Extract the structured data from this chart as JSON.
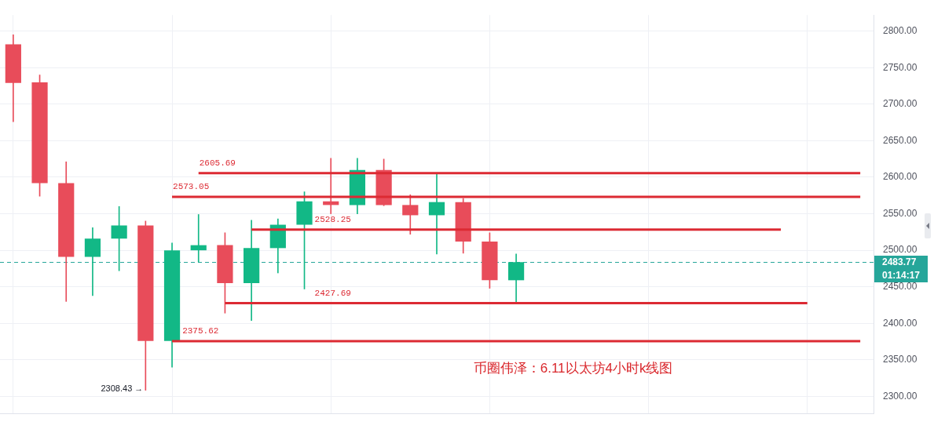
{
  "chart_data": {
    "type": "candlestick",
    "categories": [
      null,
      null,
      null,
      null,
      null,
      null,
      null,
      null,
      null,
      null,
      null,
      null,
      null,
      null,
      null,
      null,
      null,
      null,
      null,
      null,
      null,
      null,
      null,
      null,
      null,
      null,
      null,
      null,
      null,
      null,
      null,
      null,
      null
    ],
    "ohlc": [
      [
        2782,
        2795,
        2676,
        2729
      ],
      [
        2730,
        2740,
        2574,
        2592
      ],
      [
        2592,
        2621,
        2430,
        2491
      ],
      [
        2491,
        2531,
        2438,
        2516
      ],
      [
        2516,
        2560,
        2472,
        2534
      ],
      [
        2534,
        2540,
        2308.43,
        2376
      ],
      [
        2376,
        2510,
        2340,
        2500
      ],
      [
        2500,
        2549,
        2484,
        2507
      ],
      [
        2507,
        2524,
        2414,
        2455
      ],
      [
        2455,
        2541,
        2404,
        2503
      ],
      [
        2503,
        2543,
        2469,
        2535
      ],
      [
        2535,
        2580,
        2447,
        2567
      ],
      [
        2567,
        2626,
        2550,
        2562
      ],
      [
        2562,
        2626,
        2550,
        2610
      ],
      [
        2610,
        2625,
        2561,
        2562
      ],
      [
        2562,
        2576,
        2522,
        2548
      ],
      [
        2548,
        2604,
        2495,
        2566
      ],
      [
        2566,
        2571,
        2496,
        2512
      ],
      [
        2512,
        2524,
        2448,
        2459
      ],
      [
        2459,
        2495,
        2429,
        2483.77
      ],
      null,
      null,
      null,
      null,
      null,
      null,
      null,
      null,
      null,
      null,
      null,
      null,
      null
    ],
    "colors": [
      "#e84c5a",
      "#e84c5a",
      "#e84c5a",
      "#12b886",
      "#12b886",
      "#e84c5a",
      "#12b886",
      "#12b886",
      "#e84c5a",
      "#12b886",
      "#12b886",
      "#12b886",
      "#e84c5a",
      "#12b886",
      "#e84c5a",
      "#e84c5a",
      "#12b886",
      "#e84c5a",
      "#e84c5a",
      "#12b886",
      null,
      null,
      null,
      null,
      null,
      null,
      null,
      null,
      null,
      null,
      null,
      null,
      null
    ],
    "series": [
      {
        "type": "line",
        "name": "2605.69",
        "color": "#dc2a33",
        "values": [
          null,
          null,
          null,
          null,
          null,
          null,
          null,
          2605.69,
          2605.69,
          2605.69,
          2605.69,
          2605.69,
          2605.69,
          2605.69,
          2605.69,
          2605.69,
          2605.69,
          2605.69,
          2605.69,
          2605.69,
          2605.69,
          2605.69,
          2605.69,
          2605.69,
          2605.69,
          2605.69,
          2605.69,
          2605.69,
          2605.69,
          2605.69,
          2605.69,
          2605.69,
          2605.69
        ]
      },
      {
        "type": "line",
        "name": "2573.05",
        "color": "#dc2a33",
        "values": [
          null,
          null,
          null,
          null,
          null,
          null,
          2573.05,
          2573.05,
          2573.05,
          2573.05,
          2573.05,
          2573.05,
          2573.05,
          2573.05,
          2573.05,
          2573.05,
          2573.05,
          2573.05,
          2573.05,
          2573.05,
          2573.05,
          2573.05,
          2573.05,
          2573.05,
          2573.05,
          2573.05,
          2573.05,
          2573.05,
          2573.05,
          2573.05,
          2573.05,
          2573.05,
          2573.05
        ]
      },
      {
        "type": "line",
        "name": "2528.25",
        "color": "#dc2a33",
        "values": [
          null,
          null,
          null,
          null,
          null,
          null,
          null,
          null,
          null,
          2528.25,
          2528.25,
          2528.25,
          2528.25,
          2528.25,
          2528.25,
          2528.25,
          2528.25,
          2528.25,
          2528.25,
          2528.25,
          2528.25,
          2528.25,
          2528.25,
          2528.25,
          2528.25,
          2528.25,
          2528.25,
          2528.25,
          2528.25,
          2528.25,
          null,
          null,
          null
        ]
      },
      {
        "type": "line",
        "name": "2427.69",
        "color": "#dc2a33",
        "values": [
          null,
          null,
          null,
          null,
          null,
          null,
          null,
          null,
          2427.69,
          2427.69,
          2427.69,
          2427.69,
          2427.69,
          2427.69,
          2427.69,
          2427.69,
          2427.69,
          2427.69,
          2427.69,
          2427.69,
          2427.69,
          2427.69,
          2427.69,
          2427.69,
          2427.69,
          2427.69,
          2427.69,
          2427.69,
          2427.69,
          2427.69,
          2427.69,
          null,
          null
        ]
      },
      {
        "type": "line",
        "name": "2375.62",
        "color": "#dc2a33",
        "values": [
          null,
          null,
          null,
          null,
          null,
          null,
          2375.62,
          2375.62,
          2375.62,
          2375.62,
          2375.62,
          2375.62,
          2375.62,
          2375.62,
          2375.62,
          2375.62,
          2375.62,
          2375.62,
          2375.62,
          2375.62,
          2375.62,
          2375.62,
          2375.62,
          2375.62,
          2375.62,
          2375.62,
          2375.62,
          2375.62,
          2375.62,
          2375.62,
          2375.62,
          2375.62,
          2375.62
        ]
      }
    ],
    "ref_lines": [
      {
        "axis": "y",
        "value": 2483.77,
        "label": "2483.77",
        "color": "#26a69a",
        "line_style": "dashed"
      }
    ],
    "annotations": [
      "2308.43 →",
      "币圈伟泽：6.11以太坊4小时k线图",
      "01:14:17"
    ],
    "ylim": [
      2276,
      2822
    ],
    "yticks": [
      {
        "value": 2300,
        "label": "2300.00"
      },
      {
        "value": 2350,
        "label": "2350.00"
      },
      {
        "value": 2400,
        "label": "2400.00"
      },
      {
        "value": 2450,
        "label": "2450.00"
      },
      {
        "value": 2500,
        "label": "2500.00"
      },
      {
        "value": 2550,
        "label": "2550.00"
      },
      {
        "value": 2600,
        "label": "2600.00"
      },
      {
        "value": 2650,
        "label": "2650.00"
      },
      {
        "value": 2700,
        "label": "2700.00"
      },
      {
        "value": 2750,
        "label": "2750.00"
      },
      {
        "value": 2800,
        "label": "2800.00"
      }
    ],
    "grid": true,
    "tick_labels": "y"
  }
}
